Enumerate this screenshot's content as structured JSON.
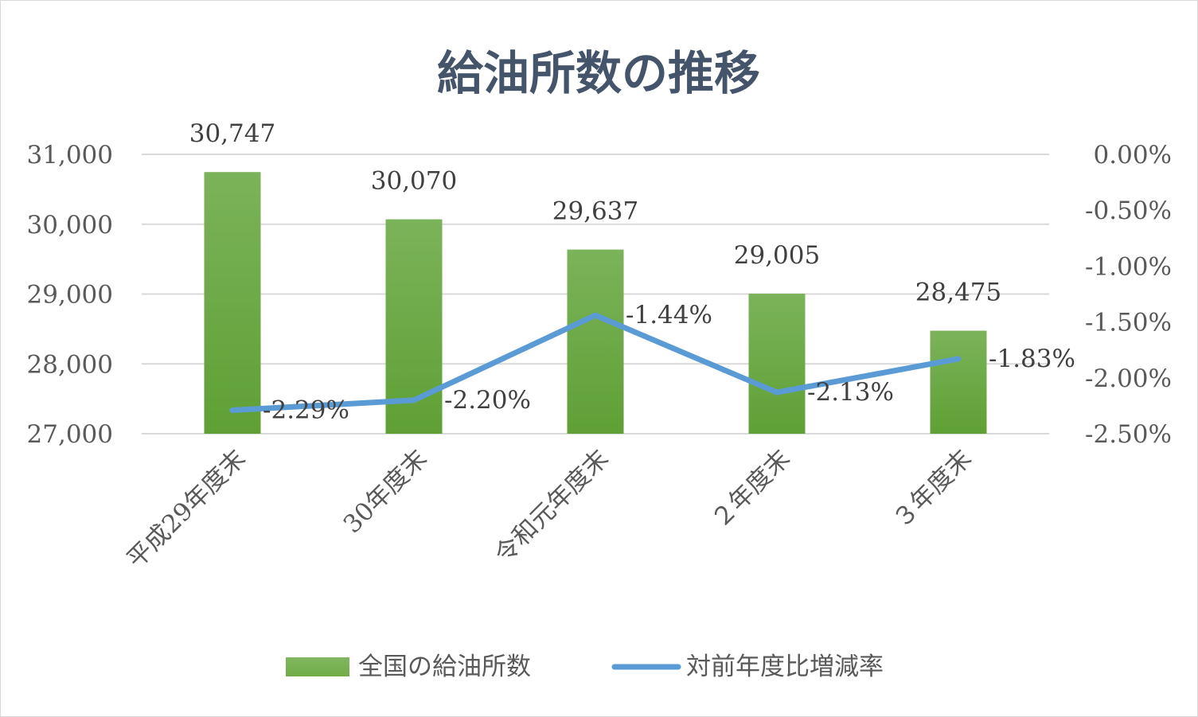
{
  "chart_data": {
    "type": "bar",
    "title": "給油所数の推移",
    "categories": [
      "平成29年度末",
      "30年度末",
      "令和元年度末",
      "２年度末",
      "３年度末"
    ],
    "series": [
      {
        "name": "全国の給油所数",
        "type": "bar",
        "axis": "left",
        "values": [
          30747,
          30070,
          29637,
          29005,
          28475
        ],
        "labels": [
          "30,747",
          "30,070",
          "29,637",
          "29,005",
          "28,475"
        ],
        "color": "#70ad47"
      },
      {
        "name": "対前年度比増減率",
        "type": "line",
        "axis": "right",
        "values": [
          -2.29,
          -2.2,
          -1.44,
          -2.13,
          -1.83
        ],
        "labels": [
          "-2.29%",
          "-2.20%",
          "-1.44%",
          "-2.13%",
          "-1.83%"
        ],
        "color": "#5b9bd5"
      }
    ],
    "y_left": {
      "range": [
        27000,
        31000
      ],
      "ticks": [
        "31,000",
        "30,000",
        "29,000",
        "28,000",
        "27,000"
      ],
      "tick_values": [
        31000,
        30000,
        29000,
        28000,
        27000
      ]
    },
    "y_right": {
      "range": [
        -2.5,
        0
      ],
      "ticks": [
        "0.00%",
        "-0.50%",
        "-1.00%",
        "-1.50%",
        "-2.00%",
        "-2.50%"
      ],
      "tick_values": [
        0,
        -0.5,
        -1.0,
        -1.5,
        -2.0,
        -2.5
      ]
    },
    "grid": true,
    "legend_position": "bottom",
    "colors": {
      "title": "#44546a",
      "gridline": "#d9d9d9",
      "axis_text": "#595959"
    }
  }
}
